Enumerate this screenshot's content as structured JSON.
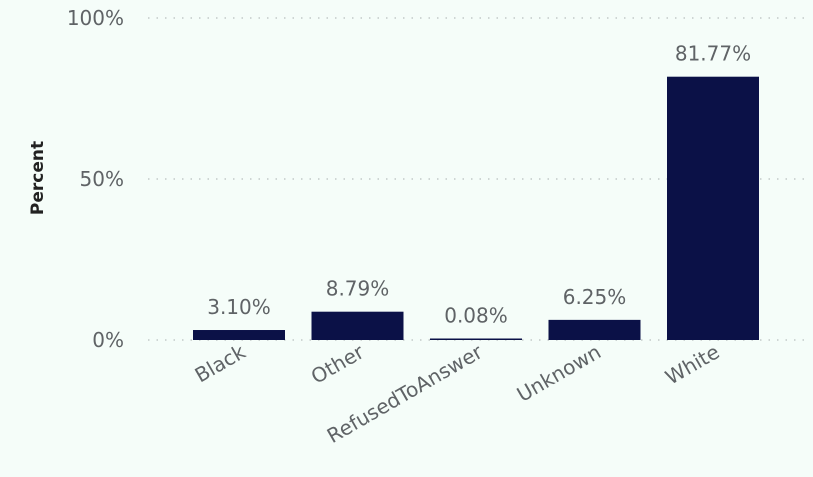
{
  "chart_data": {
    "type": "bar",
    "title": "",
    "xlabel": "",
    "ylabel": "Percent",
    "ylim": [
      0,
      100
    ],
    "yticks": [
      0,
      50,
      100
    ],
    "ytick_labels": [
      "0%",
      "50%",
      "100%"
    ],
    "categories": [
      "Black",
      "Other",
      "RefusedToAnswer",
      "Unknown",
      "White"
    ],
    "values": [
      3.1,
      8.79,
      0.08,
      6.25,
      81.77
    ],
    "data_labels": [
      "3.10%",
      "8.79%",
      "0.08%",
      "6.25%",
      "81.77%"
    ],
    "grid": true,
    "legend": "none",
    "bar_color": "#0b1147"
  }
}
